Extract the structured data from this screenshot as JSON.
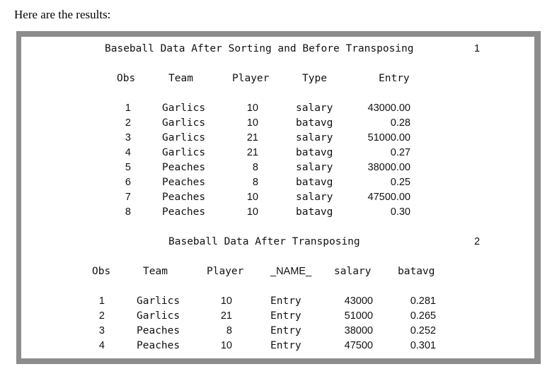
{
  "intro": "Here are the results:",
  "page1": {
    "title": "Baseball Data After Sorting and Before Transposing",
    "page_number": "1",
    "headers": [
      "Obs",
      "Team",
      "Player",
      "Type",
      "Entry"
    ],
    "rows": [
      [
        "1",
        "Garlics",
        "10",
        "salary",
        "43000.00"
      ],
      [
        "2",
        "Garlics",
        "10",
        "batavg",
        "0.28"
      ],
      [
        "3",
        "Garlics",
        "21",
        "salary",
        "51000.00"
      ],
      [
        "4",
        "Garlics",
        "21",
        "batavg",
        "0.27"
      ],
      [
        "5",
        "Peaches",
        "8",
        "salary",
        "38000.00"
      ],
      [
        "6",
        "Peaches",
        "8",
        "batavg",
        "0.25"
      ],
      [
        "7",
        "Peaches",
        "10",
        "salary",
        "47500.00"
      ],
      [
        "8",
        "Peaches",
        "10",
        "batavg",
        "0.30"
      ]
    ]
  },
  "page2": {
    "title": "Baseball Data After Transposing",
    "page_number": "2",
    "headers": [
      "Obs",
      "Team",
      "Player",
      "_NAME_",
      "salary",
      "batavg"
    ],
    "rows": [
      [
        "1",
        "Garlics",
        "10",
        "Entry",
        "43000",
        "0.281"
      ],
      [
        "2",
        "Garlics",
        "21",
        "Entry",
        "51000",
        "0.265"
      ],
      [
        "3",
        "Peaches",
        "8",
        "Entry",
        "38000",
        "0.252"
      ],
      [
        "4",
        "Peaches",
        "10",
        "Entry",
        "47500",
        "0.301"
      ]
    ]
  }
}
